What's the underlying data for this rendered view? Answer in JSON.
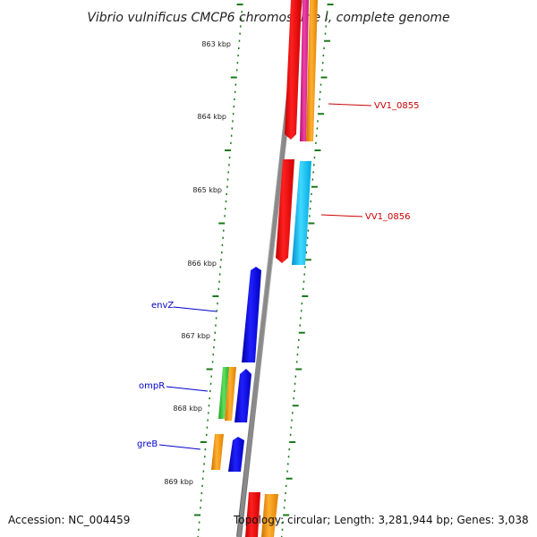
{
  "title": "Vibrio vulnificus CMCP6 chromosome I, complete genome",
  "accession": "Accession: NC_004459",
  "topology": "Topology: circular; Length: 3,281,944 bp; Genes: 3,038",
  "kbp_labels": [
    "863 kbp",
    "864 kbp",
    "865 kbp",
    "866 kbp",
    "867 kbp",
    "868 kbp",
    "869 kbp"
  ],
  "genes": {
    "vv1_0855": "VV1_0855",
    "vv1_0856": "VV1_0856",
    "envZ": "envZ",
    "ompR": "ompR",
    "greB": "greB"
  },
  "colors": {
    "backbone": "#888888",
    "tick": "#1a7a1a",
    "red": "#ff0000",
    "magenta": "#e0208c",
    "orange": "#ff9900",
    "cyan": "#00c0ff",
    "blue": "#0000ee",
    "green": "#33cc33"
  }
}
